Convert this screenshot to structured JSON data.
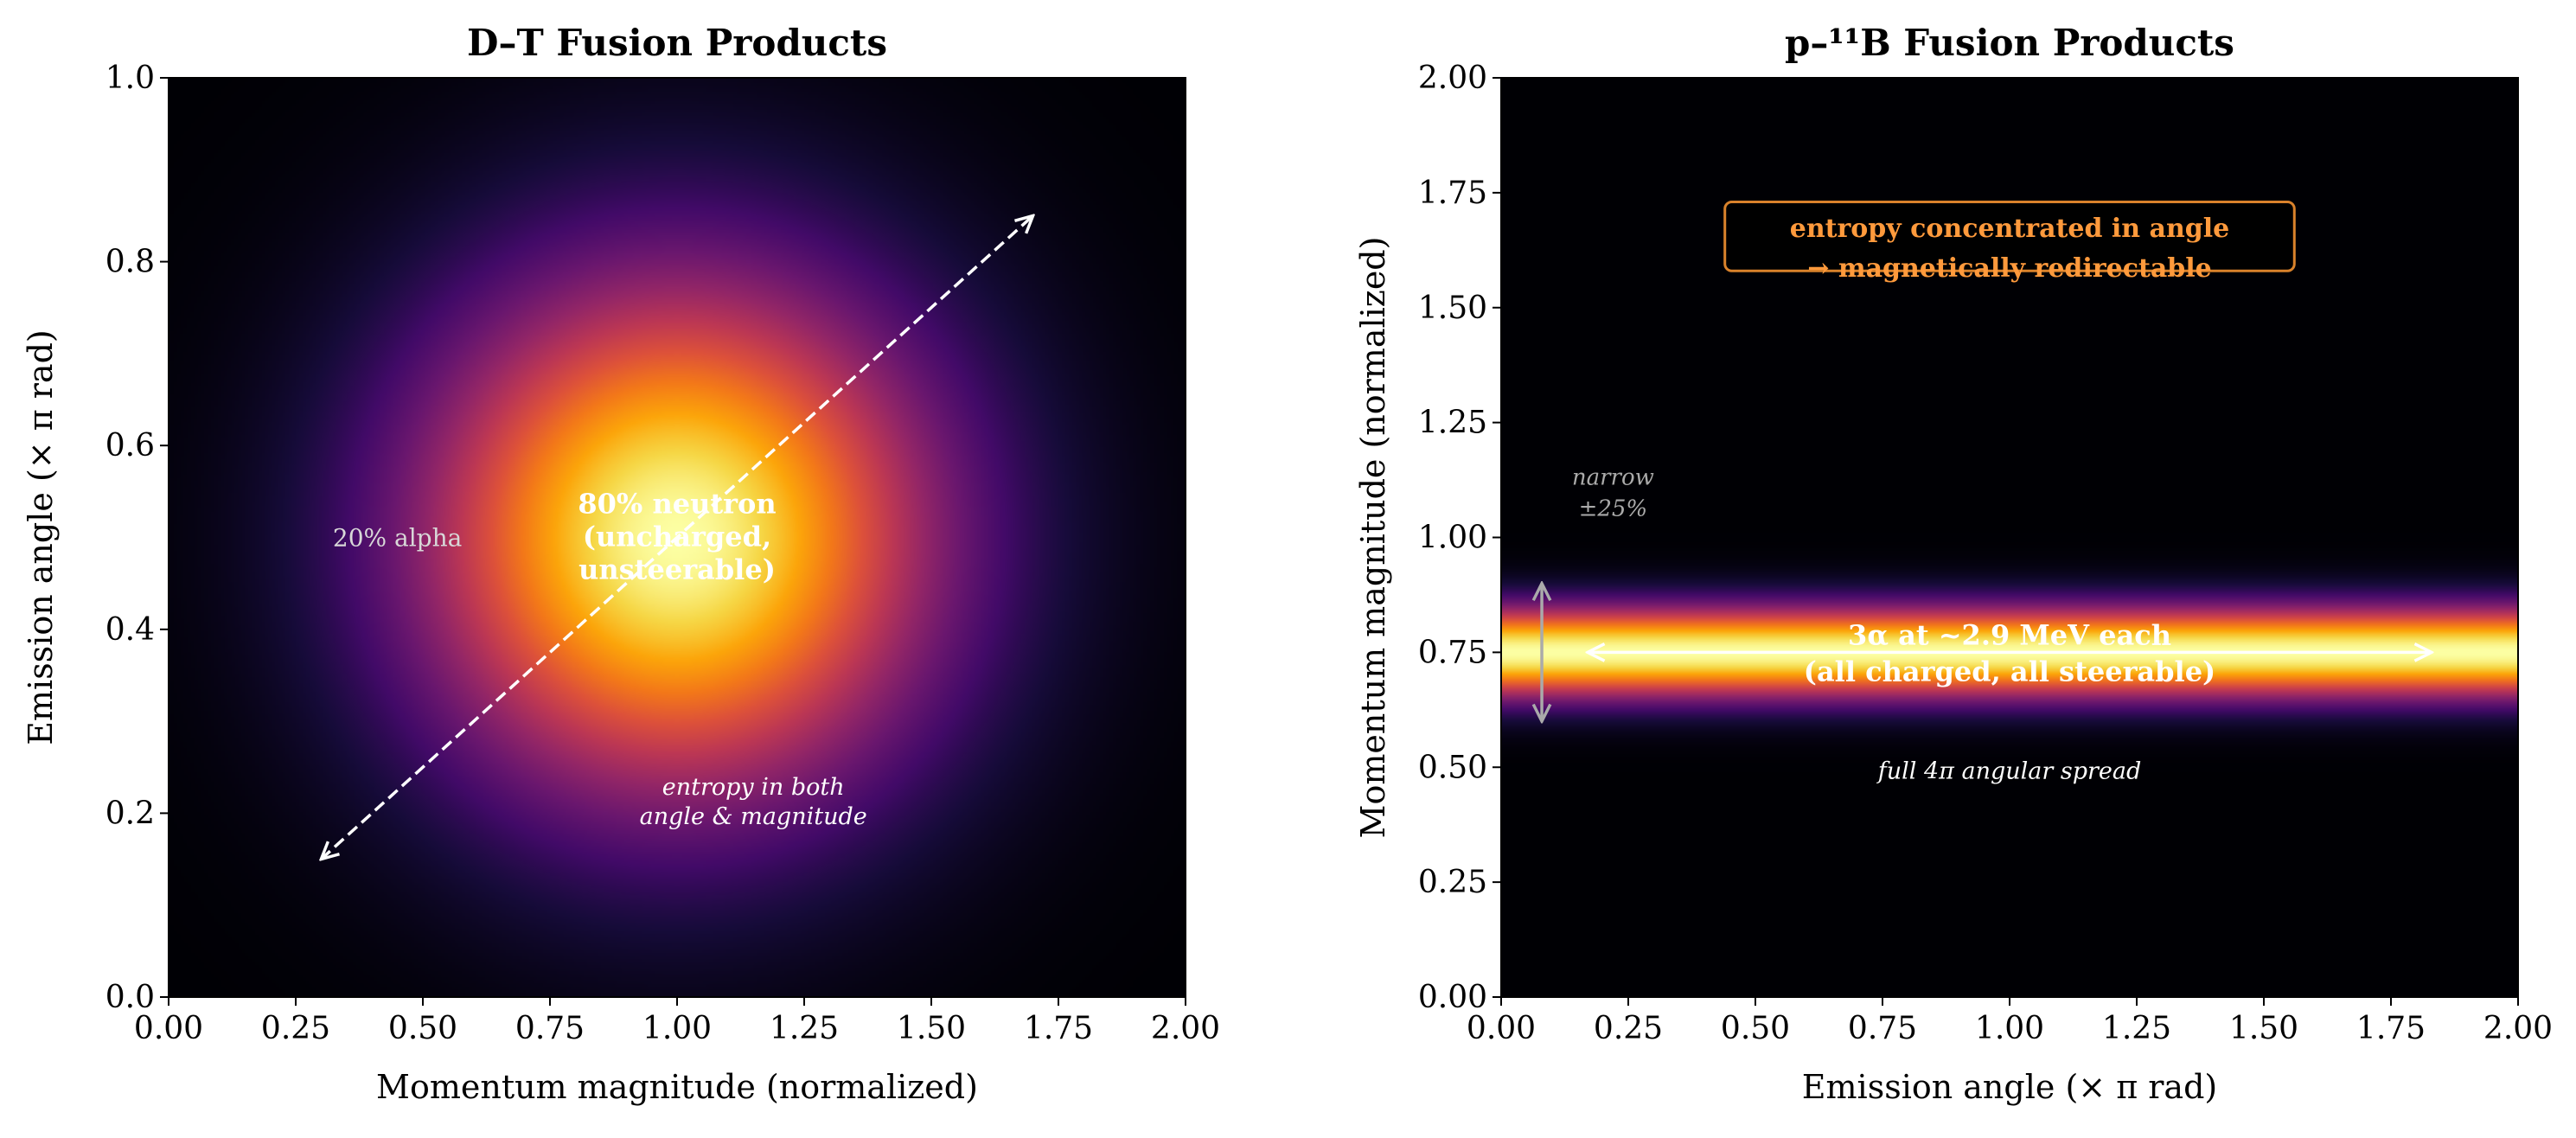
{
  "chart_data": [
    {
      "type": "heatmap",
      "title": "D–T Fusion Products",
      "xlabel": "Momentum magnitude (normalized)",
      "ylabel": "Emission angle  (× π rad)",
      "xlim": [
        0,
        2
      ],
      "ylim": [
        0,
        1
      ],
      "xticks": [
        "0.00",
        "0.25",
        "0.50",
        "0.75",
        "1.00",
        "1.25",
        "1.50",
        "1.75",
        "2.00"
      ],
      "yticks": [
        "0.0",
        "0.2",
        "0.4",
        "0.6",
        "0.8",
        "1.0"
      ],
      "colormap": "inferno",
      "distribution": {
        "shape": "2D gaussian blob",
        "center": [
          1.0,
          0.5
        ]
      },
      "annotations": {
        "neutron": [
          "80% neutron",
          "(uncharged,",
          "unsteerable)"
        ],
        "alpha": "20% alpha",
        "entropy": [
          "entropy in both",
          "angle & magnitude"
        ],
        "arrow": {
          "from": [
            0.3,
            0.15
          ],
          "to": [
            1.7,
            0.85
          ],
          "style": "dashed double-headed"
        }
      }
    },
    {
      "type": "heatmap",
      "title": "p–¹¹B Fusion Products",
      "xlabel": "Emission angle  (× π rad)",
      "ylabel": "Momentum magnitude (normalized)",
      "xlim": [
        0,
        2
      ],
      "ylim": [
        0,
        2
      ],
      "xticks": [
        "0.00",
        "0.25",
        "0.50",
        "0.75",
        "1.00",
        "1.25",
        "1.50",
        "1.75",
        "2.00"
      ],
      "yticks": [
        "0.00",
        "0.25",
        "0.50",
        "0.75",
        "1.00",
        "1.25",
        "1.50",
        "1.75",
        "2.00"
      ],
      "colormap": "inferno",
      "distribution": {
        "shape": "narrow horizontal band",
        "center_magnitude": 0.75
      },
      "annotations": {
        "box": [
          "entropy concentrated in angle",
          "→ magnetically redirectable"
        ],
        "narrow": [
          "narrow",
          "±25%"
        ],
        "alphas": [
          "3α at ~2.9 MeV each",
          "(all charged, all steerable)"
        ],
        "spread": "full 4π angular spread",
        "range_arrow": {
          "x": 0.08,
          "from": 0.6,
          "to": 0.9
        },
        "angle_arrow": {
          "y": 0.75,
          "from": 0.17,
          "to": 1.83
        }
      }
    }
  ],
  "colors": {
    "box_text": "#ff9a3c",
    "box_edge": "#d9822b",
    "muted": "#aaaaaa",
    "annotation": "#ffffff"
  }
}
